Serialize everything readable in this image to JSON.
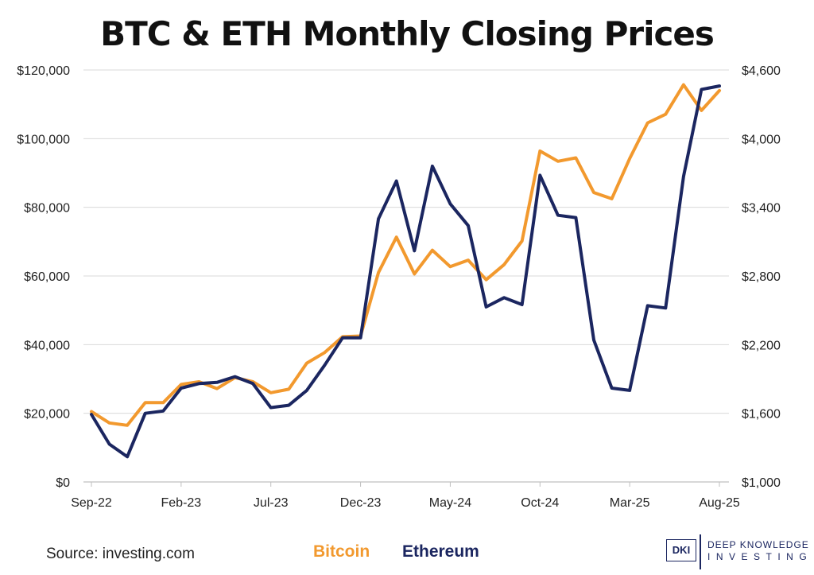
{
  "chart_data": {
    "type": "line",
    "title": "BTC & ETH Monthly Closing Prices",
    "x": [
      "Sep-22",
      "Oct-22",
      "Nov-22",
      "Dec-22",
      "Jan-23",
      "Feb-23",
      "Mar-23",
      "Apr-23",
      "May-23",
      "Jun-23",
      "Jul-23",
      "Aug-23",
      "Sep-23",
      "Oct-23",
      "Nov-23",
      "Dec-23",
      "Jan-24",
      "Feb-24",
      "Mar-24",
      "Apr-24",
      "May-24",
      "Jun-24",
      "Jul-24",
      "Aug-24",
      "Sep-24",
      "Oct-24",
      "Nov-24",
      "Dec-24",
      "Jan-25",
      "Feb-25",
      "Mar-25",
      "Apr-25",
      "May-25",
      "Jun-25",
      "Jul-25",
      "Aug-25"
    ],
    "x_tick_labels": [
      "Sep-22",
      "Feb-23",
      "Jul-23",
      "Dec-23",
      "May-24",
      "Oct-24",
      "Mar-25",
      "Aug-25"
    ],
    "y_left": {
      "ylim": [
        0,
        120000
      ],
      "ticks": [
        "$0",
        "$20,000",
        "$40,000",
        "$60,000",
        "$80,000",
        "$100,000",
        "$120,000"
      ]
    },
    "y_right": {
      "ylim": [
        1000,
        4600
      ],
      "ticks": [
        "$1,000",
        "$1,600",
        "$2,200",
        "$2,800",
        "$3,400",
        "$4,000",
        "$4,600"
      ]
    },
    "grid": true,
    "series": [
      {
        "name": "Bitcoin",
        "axis": "left",
        "color": "#f2992e",
        "values": [
          20500,
          17200,
          16500,
          23100,
          23100,
          28400,
          29200,
          27200,
          30400,
          29200,
          26000,
          27000,
          34600,
          37700,
          42300,
          42500,
          61000,
          71300,
          60600,
          67500,
          62700,
          64600,
          58900,
          63300,
          70200,
          96400,
          93400,
          94400,
          84300,
          82500,
          94200,
          104600,
          107100,
          115700,
          108200,
          114000
        ]
      },
      {
        "name": "Ethereum",
        "axis": "right",
        "color": "#1b2660",
        "values": [
          1590,
          1330,
          1220,
          1600,
          1620,
          1820,
          1860,
          1870,
          1920,
          1860,
          1650,
          1670,
          1800,
          2020,
          2260,
          2260,
          3300,
          3630,
          3020,
          3760,
          3430,
          3240,
          2530,
          2610,
          2550,
          3680,
          3330,
          3310,
          2240,
          1820,
          1800,
          2540,
          2520,
          3670,
          4430,
          4460
        ]
      }
    ]
  },
  "source": "Source: investing.com",
  "legend": [
    {
      "label": "Bitcoin",
      "color": "#f2992e"
    },
    {
      "label": "Ethereum",
      "color": "#1b2660"
    }
  ],
  "logo": {
    "mark": "DKI",
    "line1": "DEEP KNOWLEDGE",
    "line2": "INVESTING"
  }
}
